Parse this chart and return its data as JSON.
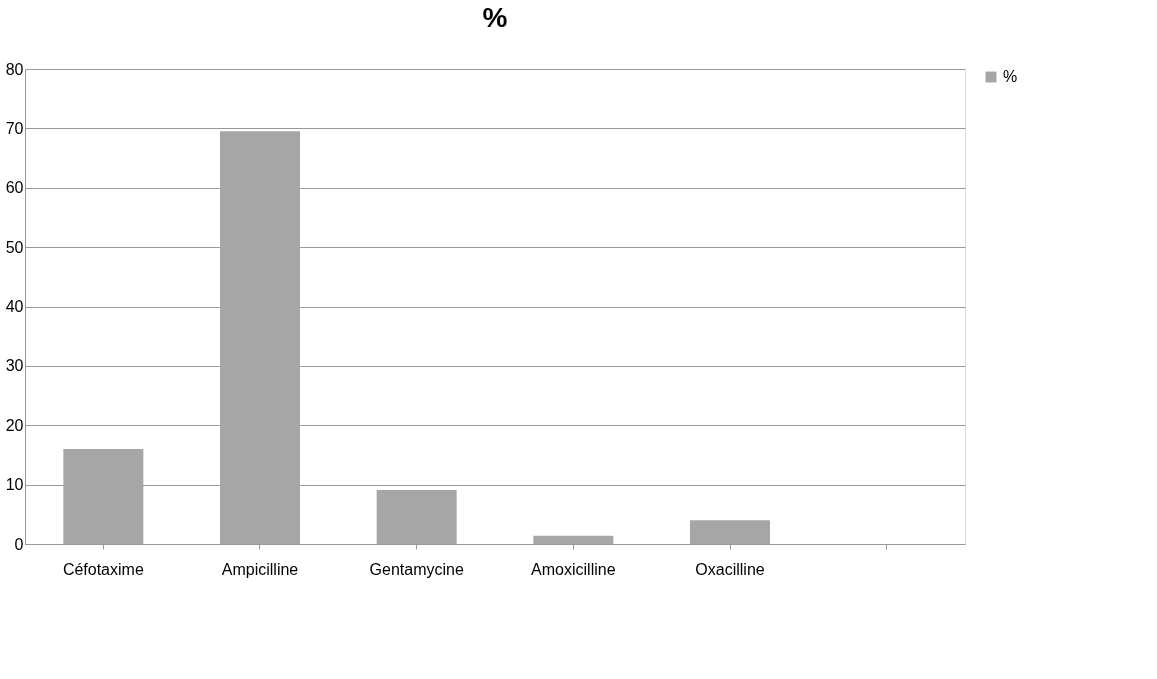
{
  "chart_data": {
    "type": "bar",
    "title": "%",
    "categories": [
      "Céfotaxime",
      "Ampicilline",
      "Gentamycine",
      "Amoxicilline",
      "Oxacilline",
      null
    ],
    "series": [
      {
        "name": "%",
        "color": "#a6a6a6",
        "values": [
          16,
          69.5,
          9.1,
          1.4,
          4,
          0
        ]
      }
    ],
    "ylim": [
      0,
      80
    ],
    "yticks": [
      0,
      10,
      20,
      30,
      40,
      50,
      60,
      70,
      80
    ],
    "grid": "y",
    "legend": "right"
  }
}
